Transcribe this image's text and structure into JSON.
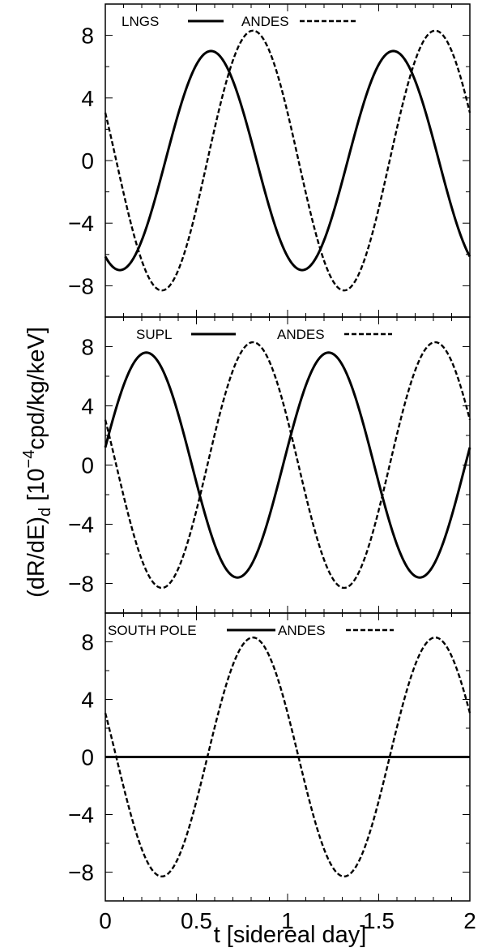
{
  "figure": {
    "ylabel": "(dR/dE)",
    "ylabel_sub": "d",
    "ylabel_rest": " [10",
    "ylabel_sup": "−4",
    "ylabel_units": "cpd/kg/keV]",
    "xlabel": "t [sidereal day]"
  },
  "chart_data": [
    {
      "type": "line",
      "title": "",
      "xlabel": "t [sidereal day]",
      "ylabel": "(dR/dE)d [10^-4 cpd/kg/keV]",
      "xlim": [
        0,
        2
      ],
      "ylim": [
        -10,
        10
      ],
      "yticks": [
        -8,
        -4,
        0,
        4,
        8
      ],
      "ytick_labels": [
        "−8",
        "−4",
        "0",
        "4",
        "8"
      ],
      "legend_placement": "top-left",
      "grid": false,
      "series": [
        {
          "name": "LNGS",
          "style": "solid",
          "amplitude": 7.0,
          "phase_days": 0.58,
          "period_days": 1.0,
          "x": [
            0,
            0.08,
            0.58,
            1.08,
            1.58,
            2.0
          ],
          "y": [
            -6.1,
            -7.0,
            7.0,
            -7.0,
            7.0,
            -6.1
          ]
        },
        {
          "name": "ANDES",
          "style": "dashed",
          "amplitude": 8.3,
          "phase_days": 0.81,
          "period_days": 1.0,
          "x": [
            0,
            0.31,
            0.81,
            1.31,
            1.81,
            2.0
          ],
          "y": [
            3.3,
            -8.3,
            8.3,
            -8.3,
            8.3,
            3.3
          ]
        }
      ]
    },
    {
      "type": "line",
      "title": "",
      "xlabel": "t [sidereal day]",
      "ylabel": "(dR/dE)d [10^-4 cpd/kg/keV]",
      "xlim": [
        0,
        2
      ],
      "ylim": [
        -10,
        10
      ],
      "yticks": [
        -8,
        -4,
        0,
        4,
        8
      ],
      "ytick_labels": [
        "−8",
        "−4",
        "0",
        "4",
        "8"
      ],
      "legend_placement": "top-left",
      "grid": false,
      "series": [
        {
          "name": "SUPL",
          "style": "solid",
          "amplitude": 7.6,
          "phase_days": 0.225,
          "period_days": 1.0,
          "x": [
            0,
            0.225,
            0.725,
            1.225,
            1.725,
            2.0
          ],
          "y": [
            1.2,
            7.6,
            -7.6,
            7.6,
            -7.6,
            1.2
          ]
        },
        {
          "name": "ANDES",
          "style": "dashed",
          "amplitude": 8.3,
          "phase_days": 0.81,
          "period_days": 1.0,
          "x": [
            0,
            0.31,
            0.81,
            1.31,
            1.81,
            2.0
          ],
          "y": [
            3.3,
            -8.3,
            8.3,
            -8.3,
            8.3,
            3.3
          ]
        }
      ]
    },
    {
      "type": "line",
      "title": "",
      "xlabel": "t [sidereal day]",
      "ylabel": "(dR/dE)d [10^-4 cpd/kg/keV]",
      "xlim": [
        0,
        2
      ],
      "ylim": [
        -10,
        10
      ],
      "yticks": [
        -8,
        -4,
        0,
        4,
        8
      ],
      "ytick_labels": [
        "−8",
        "−4",
        "0",
        "4",
        "8"
      ],
      "xticks": [
        0,
        0.5,
        1,
        1.5,
        2
      ],
      "xtick_labels": [
        "0",
        "0.5",
        "1",
        "1.5",
        "2"
      ],
      "legend_placement": "top-left",
      "grid": false,
      "series": [
        {
          "name": "SOUTH POLE",
          "style": "solid",
          "amplitude": 0.0,
          "phase_days": 0.0,
          "period_days": 1.0,
          "x": [
            0,
            2.0
          ],
          "y": [
            0,
            0
          ]
        },
        {
          "name": "ANDES",
          "style": "dashed",
          "amplitude": 8.3,
          "phase_days": 0.81,
          "period_days": 1.0,
          "x": [
            0,
            0.31,
            0.81,
            1.31,
            1.81,
            2.0
          ],
          "y": [
            3.3,
            -8.3,
            8.3,
            -8.3,
            8.3,
            3.3
          ]
        }
      ]
    }
  ]
}
